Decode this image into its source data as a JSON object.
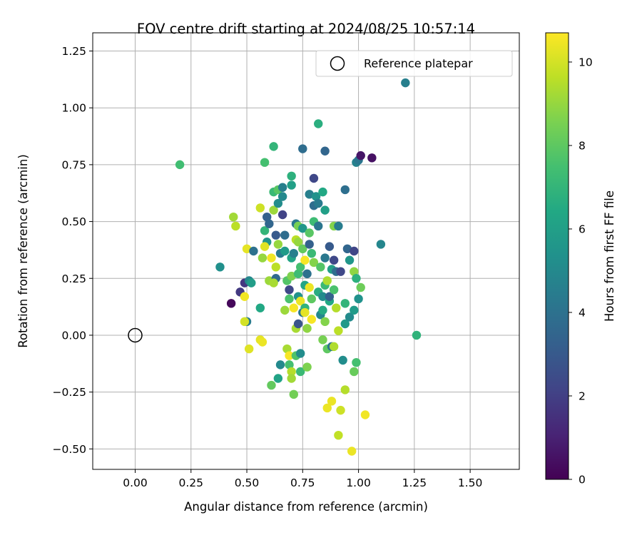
{
  "chart_data": {
    "type": "scatter",
    "title": "FOV centre drift starting at 2024/08/25 10:57:14",
    "xlabel": "Angular distance from reference (arcmin)",
    "ylabel": "Rotation from reference (arcmin)",
    "xlim": [
      -0.19,
      1.72
    ],
    "ylim": [
      -0.59,
      1.33
    ],
    "xticks": [
      0.0,
      0.25,
      0.5,
      0.75,
      1.0,
      1.25,
      1.5
    ],
    "xtick_labels": [
      "0.00",
      "0.25",
      "0.50",
      "0.75",
      "1.00",
      "1.25",
      "1.50"
    ],
    "yticks": [
      -0.5,
      -0.25,
      0.0,
      0.25,
      0.5,
      0.75,
      1.0,
      1.25
    ],
    "ytick_labels": [
      "−0.50",
      "−0.25",
      "0.00",
      "0.25",
      "0.50",
      "0.75",
      "1.00",
      "1.25"
    ],
    "grid": true,
    "legend": {
      "position": "top-right",
      "label": "Reference platepar"
    },
    "reference_point": {
      "x": 0.0,
      "y": 0.0
    },
    "colorbar": {
      "label": "Hours from first FF file",
      "colormap": "viridis",
      "range": [
        0,
        10.7
      ],
      "ticks": [
        0,
        2,
        4,
        6,
        8,
        10
      ],
      "tick_labels": [
        "0",
        "2",
        "4",
        "6",
        "8",
        "10"
      ]
    },
    "points": [
      [
        0.43,
        0.14,
        0.2
      ],
      [
        0.47,
        0.19,
        1.8
      ],
      [
        0.49,
        0.23,
        1.7
      ],
      [
        0.51,
        0.24,
        4.9
      ],
      [
        0.5,
        0.06,
        4.4
      ],
      [
        0.38,
        0.3,
        5.3
      ],
      [
        0.2,
        0.75,
        7.4
      ],
      [
        0.44,
        0.52,
        9.2
      ],
      [
        0.45,
        0.48,
        9.6
      ],
      [
        0.5,
        0.38,
        10.3
      ],
      [
        0.49,
        0.17,
        10.5
      ],
      [
        0.49,
        0.06,
        10.0
      ],
      [
        0.51,
        -0.06,
        10.2
      ],
      [
        0.56,
        -0.02,
        10.3
      ],
      [
        0.57,
        -0.03,
        10.4
      ],
      [
        0.52,
        0.23,
        5.9
      ],
      [
        0.53,
        0.37,
        4.0
      ],
      [
        0.56,
        0.12,
        6.4
      ],
      [
        0.57,
        0.34,
        9.0
      ],
      [
        0.56,
        0.56,
        9.9
      ],
      [
        0.58,
        0.76,
        7.5
      ],
      [
        0.59,
        0.52,
        3.3
      ],
      [
        0.58,
        0.46,
        7.0
      ],
      [
        0.59,
        0.41,
        5.5
      ],
      [
        0.58,
        0.39,
        10.2
      ],
      [
        0.6,
        0.49,
        3.5
      ],
      [
        0.6,
        0.24,
        9.1
      ],
      [
        0.61,
        0.34,
        10.5
      ],
      [
        0.62,
        0.63,
        7.2
      ],
      [
        0.62,
        0.55,
        9.1
      ],
      [
        0.62,
        0.83,
        7.0
      ],
      [
        0.63,
        0.44,
        3.0
      ],
      [
        0.63,
        0.25,
        3.7
      ],
      [
        0.62,
        0.23,
        9.3
      ],
      [
        0.63,
        0.3,
        9.6
      ],
      [
        0.64,
        0.4,
        9.0
      ],
      [
        0.64,
        0.58,
        5.2
      ],
      [
        0.64,
        0.64,
        7.9
      ],
      [
        0.65,
        0.36,
        4.4
      ],
      [
        0.65,
        -0.13,
        5.0
      ],
      [
        0.64,
        -0.19,
        6.2
      ],
      [
        0.61,
        -0.22,
        8.1
      ],
      [
        0.66,
        0.61,
        5.0
      ],
      [
        0.66,
        0.65,
        4.6
      ],
      [
        0.66,
        0.53,
        2.1
      ],
      [
        0.67,
        0.37,
        5.8
      ],
      [
        0.67,
        0.44,
        3.8
      ],
      [
        0.67,
        0.11,
        9.1
      ],
      [
        0.68,
        0.24,
        7.8
      ],
      [
        0.68,
        -0.06,
        9.3
      ],
      [
        0.69,
        -0.09,
        10.6
      ],
      [
        0.69,
        0.16,
        7.6
      ],
      [
        0.69,
        0.2,
        2.3
      ],
      [
        0.69,
        -0.13,
        7.5
      ],
      [
        0.7,
        0.66,
        6.0
      ],
      [
        0.7,
        0.7,
        6.8
      ],
      [
        0.7,
        0.34,
        6.3
      ],
      [
        0.7,
        0.26,
        8.6
      ],
      [
        0.7,
        -0.16,
        9.5
      ],
      [
        0.7,
        -0.19,
        9.2
      ],
      [
        0.71,
        0.12,
        10.6
      ],
      [
        0.71,
        0.36,
        4.6
      ],
      [
        0.72,
        0.49,
        4.3
      ],
      [
        0.72,
        0.42,
        9.6
      ],
      [
        0.72,
        0.03,
        9.3
      ],
      [
        0.72,
        -0.09,
        7.7
      ],
      [
        0.71,
        -0.26,
        8.4
      ],
      [
        0.73,
        0.05,
        2.8
      ],
      [
        0.73,
        0.17,
        5.4
      ],
      [
        0.73,
        0.27,
        7.3
      ],
      [
        0.73,
        0.41,
        9.0
      ],
      [
        0.73,
        0.48,
        8.5
      ],
      [
        0.74,
        0.15,
        10.4
      ],
      [
        0.74,
        0.3,
        7.5
      ],
      [
        0.74,
        -0.08,
        5.2
      ],
      [
        0.74,
        -0.16,
        7.2
      ],
      [
        0.75,
        0.82,
        3.8
      ],
      [
        0.75,
        0.47,
        5.6
      ],
      [
        0.75,
        0.1,
        4.2
      ],
      [
        0.75,
        0.38,
        8.1
      ],
      [
        0.76,
        0.22,
        6.3
      ],
      [
        0.76,
        0.12,
        6.9
      ],
      [
        0.76,
        0.33,
        10.6
      ],
      [
        0.76,
        0.1,
        10.3
      ],
      [
        0.77,
        -0.14,
        8.6
      ],
      [
        0.77,
        0.03,
        8.9
      ],
      [
        0.77,
        0.27,
        4.0
      ],
      [
        0.78,
        0.21,
        10.4
      ],
      [
        0.78,
        0.4,
        3.3
      ],
      [
        0.78,
        0.45,
        7.9
      ],
      [
        0.78,
        0.62,
        4.6
      ],
      [
        0.79,
        0.36,
        7.2
      ],
      [
        0.79,
        0.07,
        10.6
      ],
      [
        0.79,
        0.16,
        8.0
      ],
      [
        0.8,
        0.5,
        7.3
      ],
      [
        0.8,
        0.57,
        3.8
      ],
      [
        0.8,
        0.69,
        2.3
      ],
      [
        0.8,
        0.32,
        8.7
      ],
      [
        0.81,
        0.61,
        5.4
      ],
      [
        0.82,
        0.58,
        4.4
      ],
      [
        0.82,
        0.93,
        6.7
      ],
      [
        0.82,
        0.48,
        4.2
      ],
      [
        0.82,
        0.19,
        6.6
      ],
      [
        0.83,
        0.09,
        4.9
      ],
      [
        0.83,
        0.3,
        7.8
      ],
      [
        0.84,
        0.63,
        6.4
      ],
      [
        0.84,
        0.17,
        5.1
      ],
      [
        0.84,
        0.11,
        6.5
      ],
      [
        0.84,
        -0.02,
        8.5
      ],
      [
        0.85,
        0.81,
        3.5
      ],
      [
        0.85,
        0.55,
        6.0
      ],
      [
        0.85,
        0.34,
        4.3
      ],
      [
        0.85,
        0.22,
        7.2
      ],
      [
        0.85,
        0.06,
        8.7
      ],
      [
        0.86,
        -0.06,
        8.0
      ],
      [
        0.86,
        0.24,
        9.4
      ],
      [
        0.86,
        -0.32,
        10.4
      ],
      [
        0.87,
        0.39,
        3.0
      ],
      [
        0.87,
        0.15,
        6.4
      ],
      [
        0.87,
        0.17,
        3.3
      ],
      [
        0.88,
        -0.05,
        4.1
      ],
      [
        0.88,
        -0.29,
        10.4
      ],
      [
        0.88,
        0.29,
        6.0
      ],
      [
        0.89,
        0.33,
        2.3
      ],
      [
        0.89,
        0.2,
        7.6
      ],
      [
        0.89,
        0.48,
        8.7
      ],
      [
        0.89,
        -0.05,
        9.4
      ],
      [
        0.9,
        0.12,
        9.5
      ],
      [
        0.9,
        0.28,
        3.8
      ],
      [
        0.91,
        0.02,
        9.6
      ],
      [
        0.91,
        0.48,
        4.5
      ],
      [
        0.91,
        -0.44,
        9.7
      ],
      [
        0.92,
        0.28,
        2.3
      ],
      [
        0.92,
        -0.33,
        9.9
      ],
      [
        0.93,
        -0.11,
        5.2
      ],
      [
        0.94,
        0.64,
        3.9
      ],
      [
        0.94,
        0.14,
        7.0
      ],
      [
        0.94,
        0.05,
        5.7
      ],
      [
        0.94,
        -0.24,
        9.5
      ],
      [
        0.95,
        0.38,
        3.5
      ],
      [
        0.96,
        0.33,
        5.6
      ],
      [
        0.96,
        0.08,
        5.1
      ],
      [
        0.97,
        -0.51,
        10.4
      ],
      [
        0.98,
        0.11,
        5.8
      ],
      [
        0.98,
        0.28,
        8.9
      ],
      [
        0.98,
        0.37,
        2.2
      ],
      [
        0.98,
        -0.16,
        8.2
      ],
      [
        0.99,
        0.25,
        6.8
      ],
      [
        0.99,
        -0.12,
        7.5
      ],
      [
        0.99,
        0.76,
        4.7
      ],
      [
        1.0,
        0.16,
        5.4
      ],
      [
        1.01,
        0.21,
        8.3
      ],
      [
        1.0,
        0.77,
        4.2
      ],
      [
        1.01,
        0.79,
        0.6
      ],
      [
        1.06,
        0.78,
        0.5
      ],
      [
        1.03,
        -0.35,
        10.5
      ],
      [
        1.1,
        0.4,
        4.9
      ],
      [
        1.21,
        1.11,
        4.6
      ],
      [
        1.26,
        0.0,
        6.9
      ]
    ]
  }
}
